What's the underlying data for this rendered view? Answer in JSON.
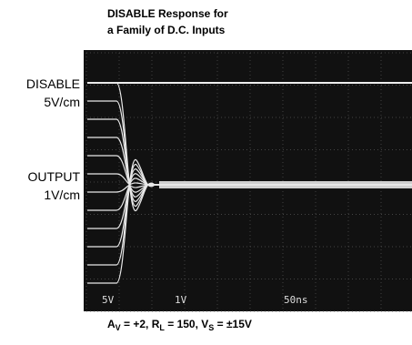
{
  "title": {
    "lines": [
      "DISABLE Response for",
      "a Family of D.C. Inputs"
    ]
  },
  "side_labels": {
    "disable": "DISABLE",
    "disable_scale": "5V/cm",
    "output": "OUTPUT",
    "output_scale": "1V/cm"
  },
  "screen_labels": [
    "5V",
    "1V",
    "50ns"
  ],
  "caption": {
    "a": "A",
    "a_sub": "V",
    "part1": " = +2, R",
    "r_sub": "L",
    "part2": " = 150, V",
    "v_sub": "S",
    "part3": " = ±15V"
  }
}
